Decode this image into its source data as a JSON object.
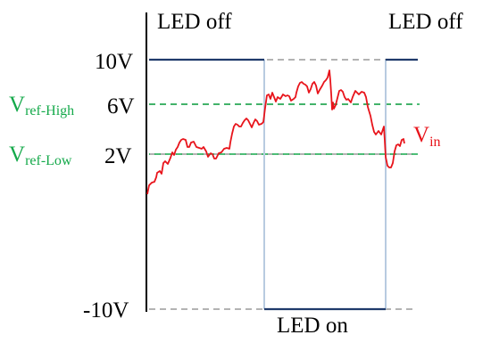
{
  "labels": {
    "led_off_left": "LED off",
    "led_off_right": "LED off",
    "led_on": "LED on",
    "tick_10v": "10V",
    "tick_6v": "6V",
    "tick_2v": "2V",
    "tick_neg10v": "-10V",
    "vref_high_main": "V",
    "vref_high_sub": "ref-High",
    "vref_low_main": "V",
    "vref_low_sub": "ref-Low",
    "vin_main": "V",
    "vin_sub": "in"
  },
  "colors": {
    "signal": "#e8141b",
    "reference": "#14a94a",
    "output_level": "#1f3a6b",
    "transition": "#b8cbe0",
    "guide": "#9a9a9a",
    "axis": "#000000"
  }
}
